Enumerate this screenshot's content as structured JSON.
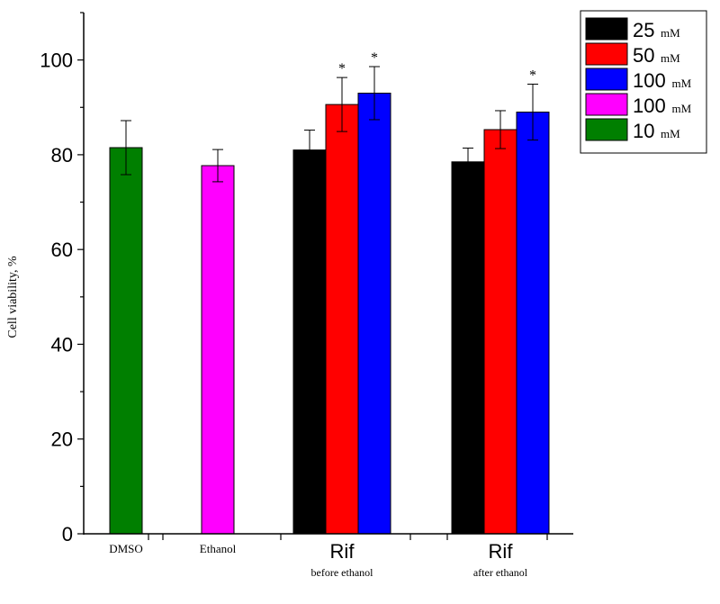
{
  "chart_data": {
    "type": "bar",
    "ylabel": "Cell viability, %",
    "ylim": [
      0,
      110
    ],
    "yticks": [
      0,
      20,
      40,
      60,
      80,
      100
    ],
    "groups": [
      {
        "label": "DMSO",
        "sublabel": "",
        "bars": [
          {
            "series": 4,
            "value": 81.5,
            "error": 5.7
          }
        ]
      },
      {
        "label": "Ethanol",
        "sublabel": "",
        "bars": [
          {
            "series": 3,
            "value": 77.7,
            "error": 3.4
          }
        ]
      },
      {
        "label": "Rif",
        "sublabel": "before ethanol",
        "bars": [
          {
            "series": 0,
            "value": 81.0,
            "error": 4.2,
            "annotation": ""
          },
          {
            "series": 1,
            "value": 90.6,
            "error": 5.7,
            "annotation": "*"
          },
          {
            "series": 2,
            "value": 93.0,
            "error": 5.6,
            "annotation": "*"
          }
        ]
      },
      {
        "label": "Rif",
        "sublabel": "after ethanol",
        "bars": [
          {
            "series": 0,
            "value": 78.5,
            "error": 2.9,
            "annotation": ""
          },
          {
            "series": 1,
            "value": 85.3,
            "error": 4.0,
            "annotation": ""
          },
          {
            "series": 2,
            "value": 89.0,
            "error": 5.9,
            "annotation": "*"
          }
        ]
      }
    ],
    "legend": {
      "position": "top-right",
      "entries": [
        {
          "value": "25",
          "unit": "mM",
          "color": "#000000"
        },
        {
          "value": "50",
          "unit": "mM",
          "color": "#ff0000"
        },
        {
          "value": "100",
          "unit": "mM",
          "color": "#0000ff"
        },
        {
          "value": "100",
          "unit": "mM",
          "color": "#ff00ff"
        },
        {
          "value": "10",
          "unit": "mM",
          "color": "#007f00"
        }
      ]
    },
    "grid": false
  }
}
